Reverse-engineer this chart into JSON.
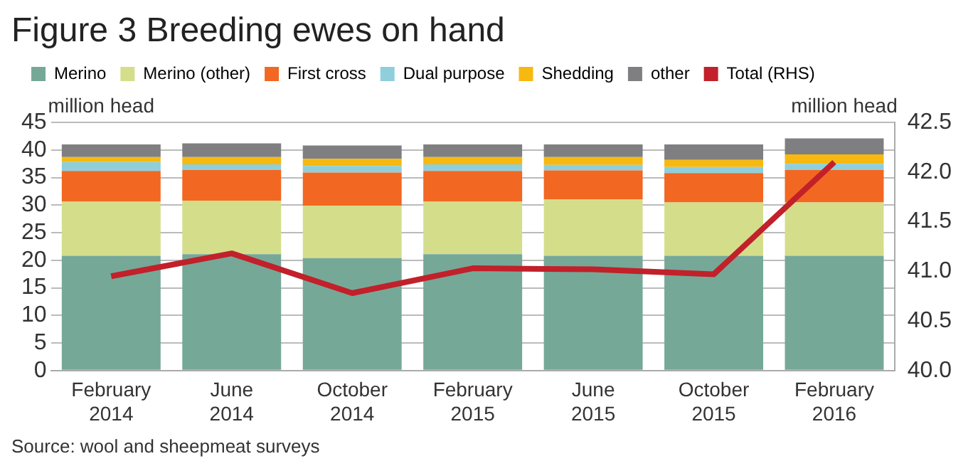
{
  "chart_data": {
    "type": "bar",
    "title": "Figure 3 Breeding ewes on hand",
    "ylabel": "million head",
    "y2label": "million head",
    "categories": [
      "February 2014",
      "June 2014",
      "October 2014",
      "February 2015",
      "June 2015",
      "October 2015",
      "February 2016"
    ],
    "stacked": true,
    "legend": "top",
    "grid": "y",
    "marker": "none",
    "series": [
      {
        "name": "Merino",
        "color": "#76a898",
        "values": [
          20.8,
          21.1,
          20.4,
          21.1,
          20.8,
          20.8,
          20.8
        ]
      },
      {
        "name": "Merino (other)",
        "color": "#d4de8a",
        "values": [
          9.8,
          9.7,
          9.5,
          9.5,
          10.2,
          9.7,
          9.7
        ]
      },
      {
        "name": "First cross",
        "color": "#f26722",
        "values": [
          5.6,
          5.6,
          6.0,
          5.6,
          5.3,
          5.3,
          5.9
        ]
      },
      {
        "name": "Dual purpose",
        "color": "#8fcfdc",
        "values": [
          1.6,
          1.0,
          1.2,
          1.2,
          1.0,
          1.1,
          1.1
        ]
      },
      {
        "name": "Shedding",
        "color": "#f7b80f",
        "values": [
          0.9,
          1.3,
          1.3,
          1.3,
          1.4,
          1.3,
          1.7
        ]
      },
      {
        "name": "other",
        "color": "#7f7f81",
        "values": [
          2.3,
          2.5,
          2.4,
          2.3,
          2.3,
          2.8,
          2.9
        ]
      },
      {
        "name": "Total (RHS)",
        "type": "line",
        "axis": "y2",
        "color": "#c2202a",
        "values": [
          40.95,
          41.18,
          40.78,
          41.03,
          41.02,
          40.97,
          42.1
        ]
      }
    ],
    "ylim": [
      0,
      45
    ],
    "yticks": [
      0,
      5,
      10,
      15,
      20,
      25,
      30,
      35,
      40,
      45
    ],
    "y2lim": [
      40,
      42.5
    ],
    "y2ticks": [
      {
        "value": 40,
        "label": "40.0"
      },
      {
        "value": 40.5,
        "label": "40.5"
      },
      {
        "value": 41,
        "label": "41.0"
      },
      {
        "value": 41.5,
        "label": "41.5"
      },
      {
        "value": 42,
        "label": "42.0"
      },
      {
        "value": 42.5,
        "label": "42.5"
      }
    ],
    "annotations": [
      "Source: wool and sheepmeat surveys"
    ]
  }
}
